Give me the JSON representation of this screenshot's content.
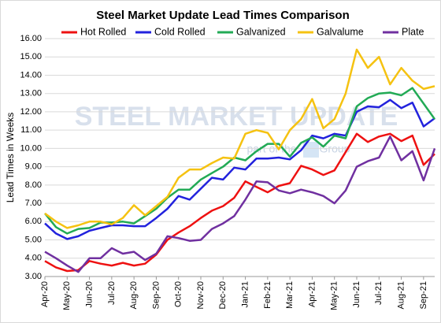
{
  "chart_data": {
    "type": "line",
    "title": "Steel Market Update Lead Times Comparison",
    "y_label": "Lead Times in Weeks",
    "watermark": "STEEL MARKET UPDATE",
    "watermark_sub": "part of the",
    "watermark_sub2": "Group",
    "categories": [
      "Apr-20",
      null,
      "May-20",
      null,
      "Jun-20",
      null,
      "Jul-20",
      null,
      "Aug-20",
      null,
      "Sep-20",
      null,
      "Oct-20",
      null,
      "Nov-20",
      null,
      "Dec-20",
      null,
      "Jan-21",
      null,
      "Feb-21",
      null,
      "Mar-21",
      null,
      "Apr-21",
      null,
      "May-21",
      null,
      "Jun-21",
      null,
      "Jul-21",
      null,
      "Aug-21",
      null,
      "Sep-21",
      null
    ],
    "series": [
      {
        "name": "Hot Rolled",
        "color": "#ee1111",
        "values": [
          3.85,
          3.5,
          3.3,
          3.35,
          3.85,
          3.7,
          3.6,
          3.75,
          3.6,
          3.7,
          4.2,
          5.0,
          5.4,
          5.75,
          6.2,
          6.6,
          6.85,
          7.3,
          8.2,
          7.9,
          7.6,
          7.95,
          8.1,
          9.05,
          8.85,
          8.55,
          8.8,
          9.8,
          10.8,
          10.35,
          10.65,
          10.8,
          10.4,
          10.7,
          9.1,
          9.7
        ]
      },
      {
        "name": "Cold Rolled",
        "color": "#2222dd",
        "values": [
          5.9,
          5.35,
          5.05,
          5.2,
          5.5,
          5.65,
          5.8,
          5.8,
          5.75,
          5.75,
          6.2,
          6.7,
          7.4,
          7.2,
          7.8,
          8.4,
          8.3,
          8.95,
          8.85,
          9.45,
          9.45,
          9.5,
          9.4,
          9.9,
          10.7,
          10.55,
          10.8,
          10.7,
          12.0,
          12.3,
          12.25,
          12.65,
          12.2,
          12.5,
          11.2,
          11.65
        ]
      },
      {
        "name": "Galvanized",
        "color": "#22aa55",
        "values": [
          6.45,
          5.7,
          5.35,
          5.6,
          5.65,
          5.95,
          5.95,
          6.0,
          5.9,
          6.3,
          6.7,
          7.3,
          7.75,
          7.75,
          8.3,
          8.65,
          9.0,
          9.5,
          9.35,
          9.85,
          10.25,
          10.25,
          9.55,
          10.3,
          10.6,
          10.1,
          10.7,
          10.55,
          12.3,
          12.75,
          13.0,
          13.05,
          12.9,
          13.3,
          12.45,
          11.6
        ]
      },
      {
        "name": "Galvalume",
        "color": "#f5c211",
        "values": [
          6.45,
          6.0,
          5.65,
          5.8,
          6.0,
          6.0,
          5.85,
          6.2,
          6.9,
          6.35,
          6.85,
          7.35,
          8.4,
          8.85,
          8.85,
          9.2,
          9.5,
          9.45,
          10.8,
          11.0,
          10.85,
          9.95,
          11.0,
          11.6,
          12.7,
          11.1,
          11.6,
          13.0,
          15.4,
          14.4,
          15.0,
          13.5,
          14.4,
          13.7,
          13.25,
          13.4
        ]
      },
      {
        "name": "Plate",
        "color": "#7030a0",
        "values": [
          4.35,
          4.0,
          3.6,
          3.25,
          4.0,
          4.0,
          4.55,
          4.25,
          4.35,
          3.9,
          4.25,
          5.2,
          5.1,
          4.95,
          5.0,
          5.6,
          5.9,
          6.3,
          7.2,
          8.2,
          8.15,
          7.7,
          7.55,
          7.75,
          7.6,
          7.4,
          7.0,
          7.7,
          9.0,
          9.3,
          9.5,
          10.65,
          9.35,
          9.85,
          8.25,
          10.0
        ]
      }
    ],
    "ylim": [
      3,
      16
    ],
    "yticks": [
      {
        "value": 3,
        "label": "3.00"
      },
      {
        "value": 4,
        "label": "4.00"
      },
      {
        "value": 5,
        "label": "5.00"
      },
      {
        "value": 6,
        "label": "6.00"
      },
      {
        "value": 7,
        "label": "7.00"
      },
      {
        "value": 8,
        "label": "8.00"
      },
      {
        "value": 9,
        "label": "9.00"
      },
      {
        "value": 10,
        "label": "10.00"
      },
      {
        "value": 11,
        "label": "11.00"
      },
      {
        "value": 12,
        "label": "12.00"
      },
      {
        "value": 13,
        "label": "13.00"
      },
      {
        "value": 14,
        "label": "14.00"
      },
      {
        "value": 15,
        "label": "15.00"
      },
      {
        "value": 16,
        "label": "16.00"
      }
    ],
    "grid": true
  }
}
